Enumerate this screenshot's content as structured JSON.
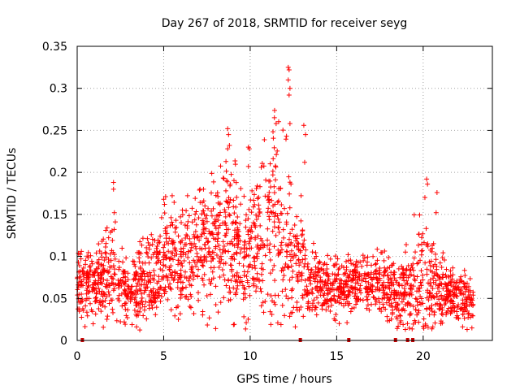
{
  "chart_data": {
    "type": "scatter",
    "title": "Day 267 of 2018, SRMTID for receiver seyg",
    "xlabel": "GPS time / hours",
    "ylabel": "SRMTID / TECUs",
    "xlim": [
      0,
      24
    ],
    "ylim": [
      0,
      0.35
    ],
    "xticks": [
      0,
      5,
      10,
      15,
      20
    ],
    "yticks": [
      0,
      0.05,
      0.1,
      0.15,
      0.2,
      0.25,
      0.3,
      0.35
    ],
    "x_tick_labels": [
      "0",
      "5",
      "10",
      "15",
      "20"
    ],
    "y_tick_labels": [
      "0",
      "0.05",
      "0.1",
      "0.15",
      "0.2",
      "0.25",
      "0.3",
      "0.35"
    ],
    "grid": true,
    "marker": "plus",
    "color": "#ff0000",
    "envelope": {
      "x": [
        0,
        0.5,
        1,
        1.5,
        2,
        2.5,
        3,
        3.5,
        4,
        4.5,
        5,
        5.5,
        6,
        6.5,
        7,
        7.5,
        8,
        8.5,
        9,
        9.5,
        10,
        10.5,
        11,
        11.5,
        12,
        12.5,
        13,
        13.5,
        14,
        14.5,
        15,
        15.5,
        16,
        16.5,
        17,
        17.5,
        18,
        18.5,
        19,
        19.5,
        20,
        20.5,
        21,
        21.5,
        22,
        22.5,
        22.9
      ],
      "mean": [
        0.065,
        0.07,
        0.06,
        0.075,
        0.08,
        0.075,
        0.05,
        0.065,
        0.07,
        0.08,
        0.1,
        0.1,
        0.09,
        0.1,
        0.11,
        0.12,
        0.11,
        0.13,
        0.12,
        0.1,
        0.11,
        0.12,
        0.13,
        0.14,
        0.12,
        0.1,
        0.09,
        0.07,
        0.07,
        0.065,
        0.07,
        0.065,
        0.065,
        0.07,
        0.065,
        0.07,
        0.065,
        0.05,
        0.06,
        0.06,
        0.07,
        0.07,
        0.055,
        0.06,
        0.05,
        0.05,
        0.045
      ],
      "spread": [
        0.02,
        0.025,
        0.025,
        0.03,
        0.04,
        0.03,
        0.02,
        0.03,
        0.03,
        0.035,
        0.04,
        0.04,
        0.035,
        0.04,
        0.045,
        0.05,
        0.05,
        0.06,
        0.06,
        0.045,
        0.05,
        0.05,
        0.06,
        0.07,
        0.06,
        0.05,
        0.035,
        0.025,
        0.025,
        0.02,
        0.025,
        0.02,
        0.02,
        0.025,
        0.02,
        0.025,
        0.025,
        0.025,
        0.025,
        0.04,
        0.045,
        0.04,
        0.025,
        0.02,
        0.02,
        0.02,
        0.02
      ]
    },
    "outliers": [
      {
        "x": 2.1,
        "y": 0.188
      },
      {
        "x": 2.1,
        "y": 0.18
      },
      {
        "x": 2.15,
        "y": 0.152
      },
      {
        "x": 5.0,
        "y": 0.168
      },
      {
        "x": 5.05,
        "y": 0.162
      },
      {
        "x": 7.1,
        "y": 0.18
      },
      {
        "x": 7.3,
        "y": 0.18
      },
      {
        "x": 8.7,
        "y": 0.252
      },
      {
        "x": 8.75,
        "y": 0.245
      },
      {
        "x": 8.8,
        "y": 0.232
      },
      {
        "x": 8.7,
        "y": 0.228
      },
      {
        "x": 8.6,
        "y": 0.213
      },
      {
        "x": 9.9,
        "y": 0.23
      },
      {
        "x": 9.95,
        "y": 0.228
      },
      {
        "x": 9.9,
        "y": 0.207
      },
      {
        "x": 11.4,
        "y": 0.265
      },
      {
        "x": 11.5,
        "y": 0.258
      },
      {
        "x": 12.2,
        "y": 0.325
      },
      {
        "x": 12.25,
        "y": 0.322
      },
      {
        "x": 12.2,
        "y": 0.31
      },
      {
        "x": 12.3,
        "y": 0.3
      },
      {
        "x": 12.25,
        "y": 0.292
      },
      {
        "x": 12.3,
        "y": 0.258
      },
      {
        "x": 12.1,
        "y": 0.243
      },
      {
        "x": 13.1,
        "y": 0.256
      },
      {
        "x": 13.2,
        "y": 0.245
      },
      {
        "x": 13.15,
        "y": 0.212
      },
      {
        "x": 20.2,
        "y": 0.192
      },
      {
        "x": 20.25,
        "y": 0.186
      },
      {
        "x": 20.1,
        "y": 0.17
      },
      {
        "x": 20.8,
        "y": 0.176
      },
      {
        "x": 20.75,
        "y": 0.152
      }
    ],
    "zero_markers_x": [
      0.3,
      12.9,
      15.7,
      18.4,
      19.1,
      19.4
    ]
  }
}
